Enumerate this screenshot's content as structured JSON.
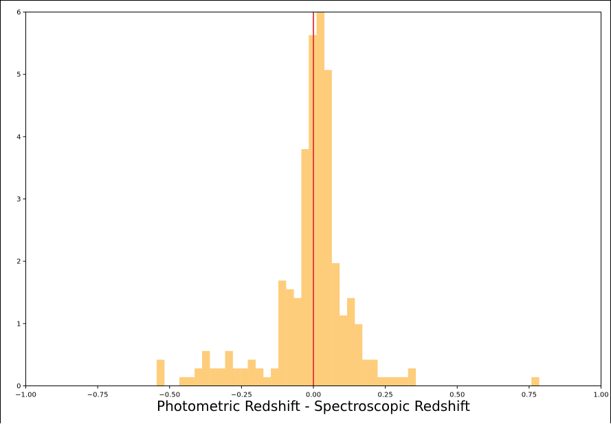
{
  "chart_data": {
    "type": "bar",
    "title": "",
    "xlabel": "Photometric Redshift - Spectroscopic Redshift",
    "ylabel": "",
    "xlim": [
      -1.0,
      1.0
    ],
    "ylim": [
      0,
      6
    ],
    "grid": false,
    "x_ticks": [
      "−1.00",
      "−0.75",
      "−0.50",
      "−0.25",
      "0.00",
      "0.25",
      "0.50",
      "0.75",
      "1.00"
    ],
    "y_ticks": [
      "0",
      "1",
      "2",
      "3",
      "4",
      "5",
      "6"
    ],
    "bin_width": 0.0265,
    "bins": [
      {
        "x0": -0.545,
        "y": 0.42
      },
      {
        "x0": -0.466,
        "y": 0.14
      },
      {
        "x0": -0.44,
        "y": 0.14
      },
      {
        "x0": -0.413,
        "y": 0.28
      },
      {
        "x0": -0.387,
        "y": 0.56
      },
      {
        "x0": -0.36,
        "y": 0.28
      },
      {
        "x0": -0.334,
        "y": 0.28
      },
      {
        "x0": -0.307,
        "y": 0.56
      },
      {
        "x0": -0.281,
        "y": 0.28
      },
      {
        "x0": -0.254,
        "y": 0.28
      },
      {
        "x0": -0.228,
        "y": 0.42
      },
      {
        "x0": -0.201,
        "y": 0.28
      },
      {
        "x0": -0.175,
        "y": 0.14
      },
      {
        "x0": -0.148,
        "y": 0.28
      },
      {
        "x0": -0.122,
        "y": 1.69
      },
      {
        "x0": -0.095,
        "y": 1.55
      },
      {
        "x0": -0.069,
        "y": 1.41
      },
      {
        "x0": -0.042,
        "y": 3.8
      },
      {
        "x0": -0.016,
        "y": 5.63
      },
      {
        "x0": 0.011,
        "y": 6.0
      },
      {
        "x0": 0.037,
        "y": 5.07
      },
      {
        "x0": 0.064,
        "y": 1.97
      },
      {
        "x0": 0.09,
        "y": 1.13
      },
      {
        "x0": 0.117,
        "y": 1.41
      },
      {
        "x0": 0.143,
        "y": 0.99
      },
      {
        "x0": 0.17,
        "y": 0.42
      },
      {
        "x0": 0.196,
        "y": 0.42
      },
      {
        "x0": 0.223,
        "y": 0.14
      },
      {
        "x0": 0.249,
        "y": 0.14
      },
      {
        "x0": 0.276,
        "y": 0.14
      },
      {
        "x0": 0.302,
        "y": 0.14
      },
      {
        "x0": 0.329,
        "y": 0.28
      },
      {
        "x0": 0.758,
        "y": 0.14
      }
    ],
    "vline_x": 0.0,
    "colors": {
      "bar": "#fdcd7b",
      "vline": "#e03232",
      "axis": "#000000"
    }
  }
}
